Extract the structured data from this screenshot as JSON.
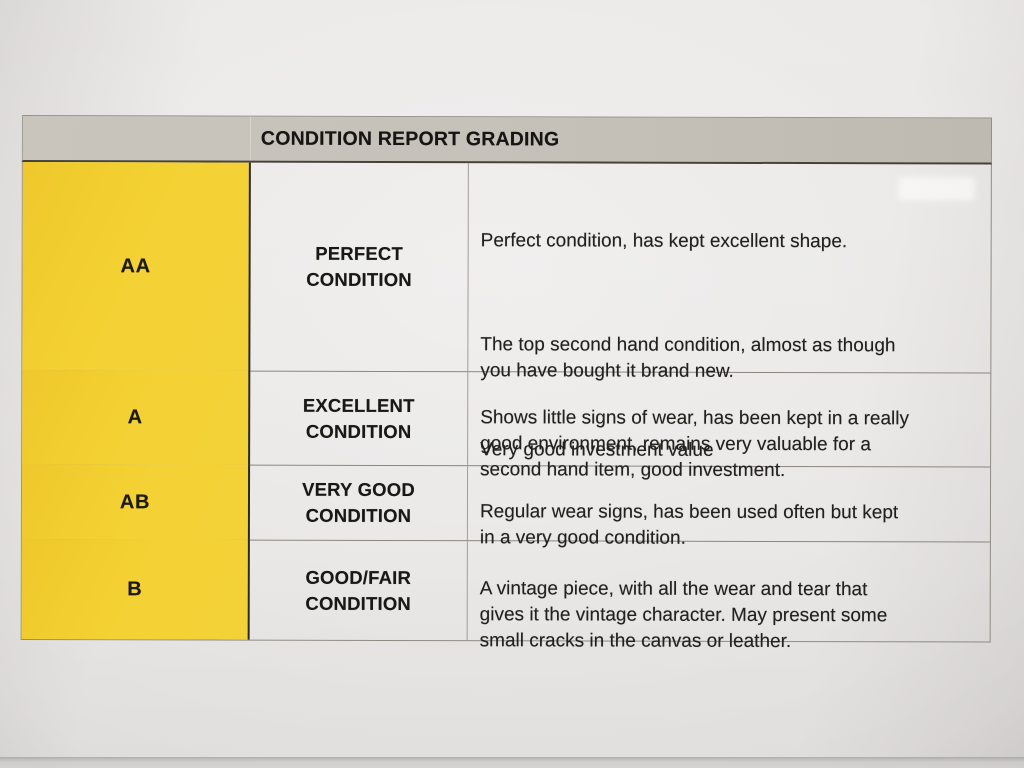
{
  "header": {
    "title": "CONDITION REPORT GRADING"
  },
  "table": {
    "rows": [
      {
        "grade": "AA",
        "condition": "PERFECT\nCONDITION",
        "description_paragraphs": [
          "Perfect condition, has kept excellent shape.",
          "The top second hand condition, almost as though\nyou have bought it brand new.",
          "Very good investment value"
        ]
      },
      {
        "grade": "A",
        "condition": "EXCELLENT\nCONDITION",
        "description_paragraphs": [
          "Shows little signs of wear, has been kept in a really\ngood environment, remains very valuable for a\nsecond hand item, good investment."
        ]
      },
      {
        "grade": "AB",
        "condition": "VERY GOOD\nCONDITION",
        "description_paragraphs": [
          "Regular wear signs, has been used often but kept\nin a very good condition."
        ]
      },
      {
        "grade": "B",
        "condition": "GOOD/FAIR\nCONDITION",
        "description_paragraphs": [
          "A vintage piece, with all the wear and tear that\ngives it the vintage character. May present some\nsmall cracks in the canvas or leather."
        ]
      }
    ]
  },
  "colors": {
    "grade_cell_yellow": "#f2cf2f",
    "header_bar_gray": "#c6c2ba",
    "paper": "#e8e6e4",
    "text": "#1f1e1c"
  }
}
